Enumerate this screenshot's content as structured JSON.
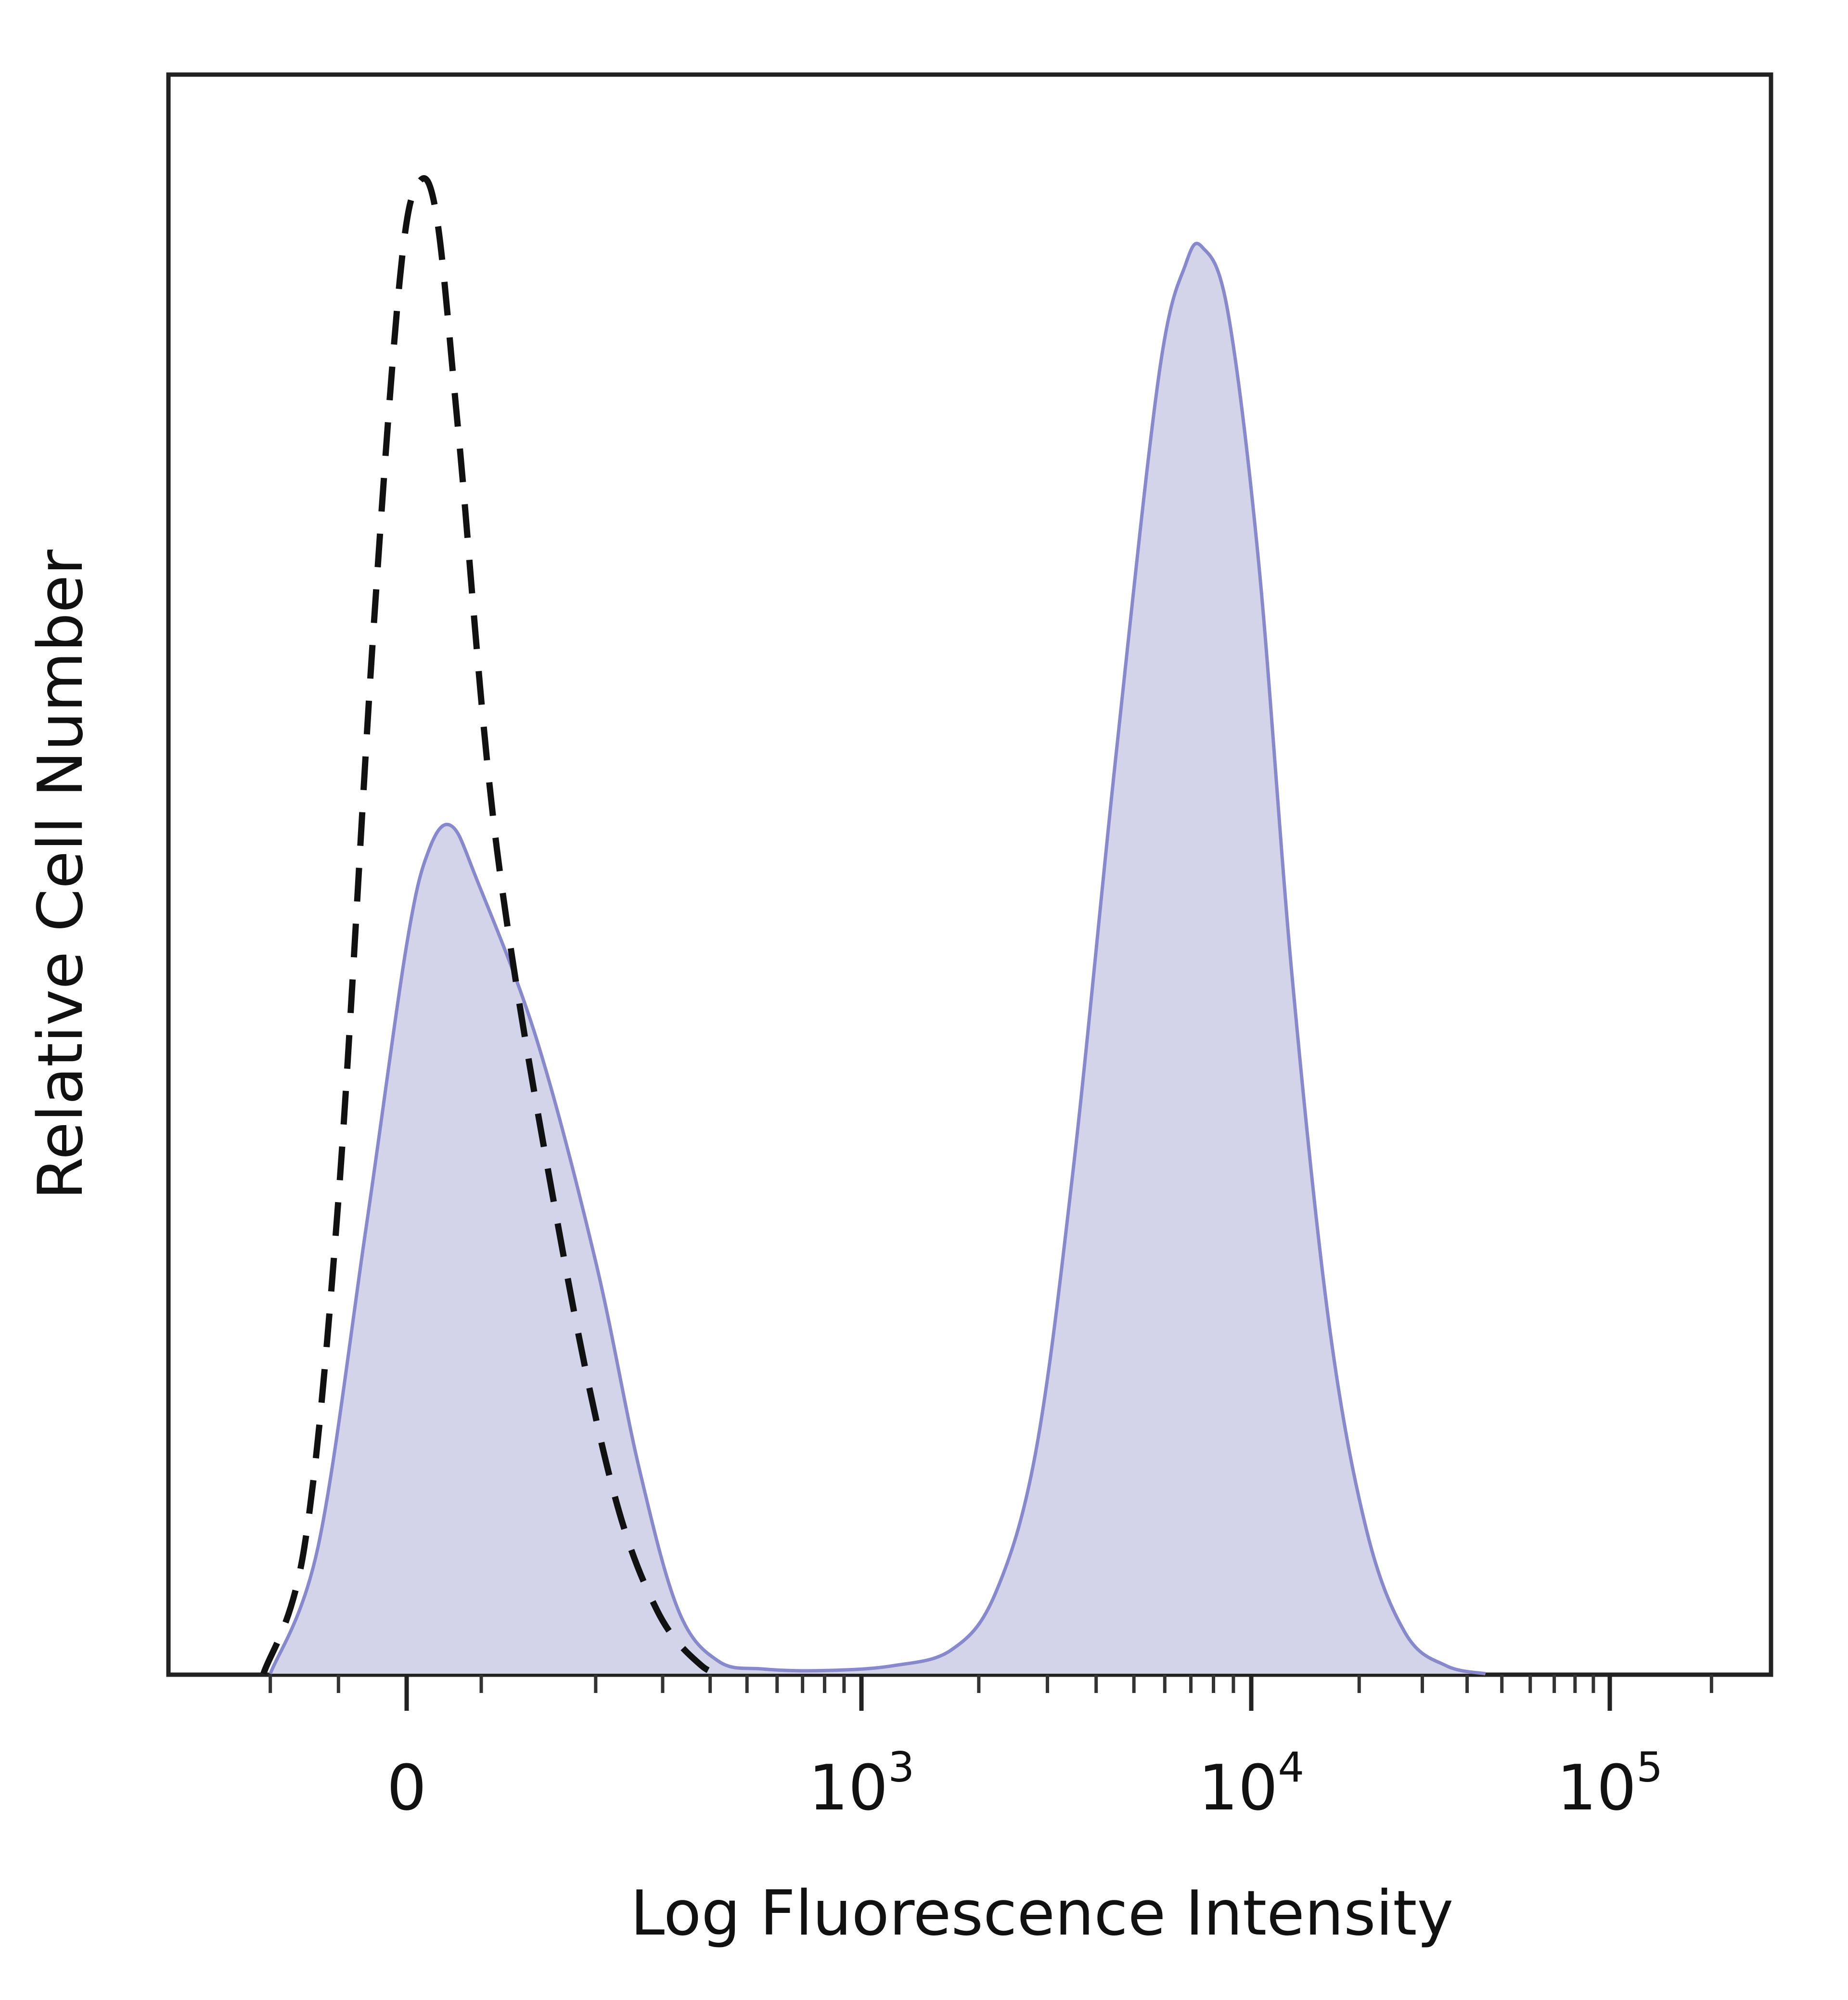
{
  "chart_data": {
    "type": "area",
    "title": "",
    "xlabel": "Log Fluorescence Intensity",
    "ylabel": "Relative Cell Number",
    "x_scale": "biexponential",
    "xlim": [
      -300,
      300000
    ],
    "ylim": [
      0,
      100
    ],
    "grid": false,
    "legend": "none",
    "x_ticks": [
      {
        "value": 0,
        "base": "0",
        "exp": ""
      },
      {
        "value": 1000,
        "base": "10",
        "exp": "3"
      },
      {
        "value": 10000,
        "base": "10",
        "exp": "4"
      },
      {
        "value": 100000,
        "base": "10",
        "exp": "5"
      }
    ],
    "series": [
      {
        "style": "filled",
        "color": "#8888cc",
        "fill": "#d3d3ea",
        "points": [
          [
            -200,
            0
          ],
          [
            -130,
            8
          ],
          [
            -60,
            28
          ],
          [
            0,
            46
          ],
          [
            30,
            52
          ],
          [
            60,
            53.5
          ],
          [
            95,
            50
          ],
          [
            140,
            40
          ],
          [
            200,
            26
          ],
          [
            260,
            13
          ],
          [
            330,
            4
          ],
          [
            420,
            0.8
          ],
          [
            550,
            0.3
          ],
          [
            800,
            0.2
          ],
          [
            1200,
            0.5
          ],
          [
            1700,
            1.5
          ],
          [
            2200,
            5
          ],
          [
            2800,
            14
          ],
          [
            3500,
            32
          ],
          [
            4500,
            58
          ],
          [
            5800,
            82
          ],
          [
            6800,
            89
          ],
          [
            7500,
            90
          ],
          [
            8700,
            86
          ],
          [
            10500,
            70
          ],
          [
            13000,
            44
          ],
          [
            16500,
            22
          ],
          [
            21000,
            9
          ],
          [
            27000,
            2.5
          ],
          [
            35000,
            0.5
          ],
          [
            45000,
            0
          ]
        ]
      },
      {
        "style": "dashed",
        "color": "#111111",
        "points": [
          [
            -210,
            0
          ],
          [
            -150,
            8
          ],
          [
            -100,
            30
          ],
          [
            -50,
            65
          ],
          [
            -10,
            88
          ],
          [
            15,
            94
          ],
          [
            40,
            92
          ],
          [
            70,
            78
          ],
          [
            110,
            52
          ],
          [
            160,
            28
          ],
          [
            220,
            12
          ],
          [
            290,
            4
          ],
          [
            380,
            0.5
          ],
          [
            450,
            0
          ]
        ]
      }
    ]
  }
}
